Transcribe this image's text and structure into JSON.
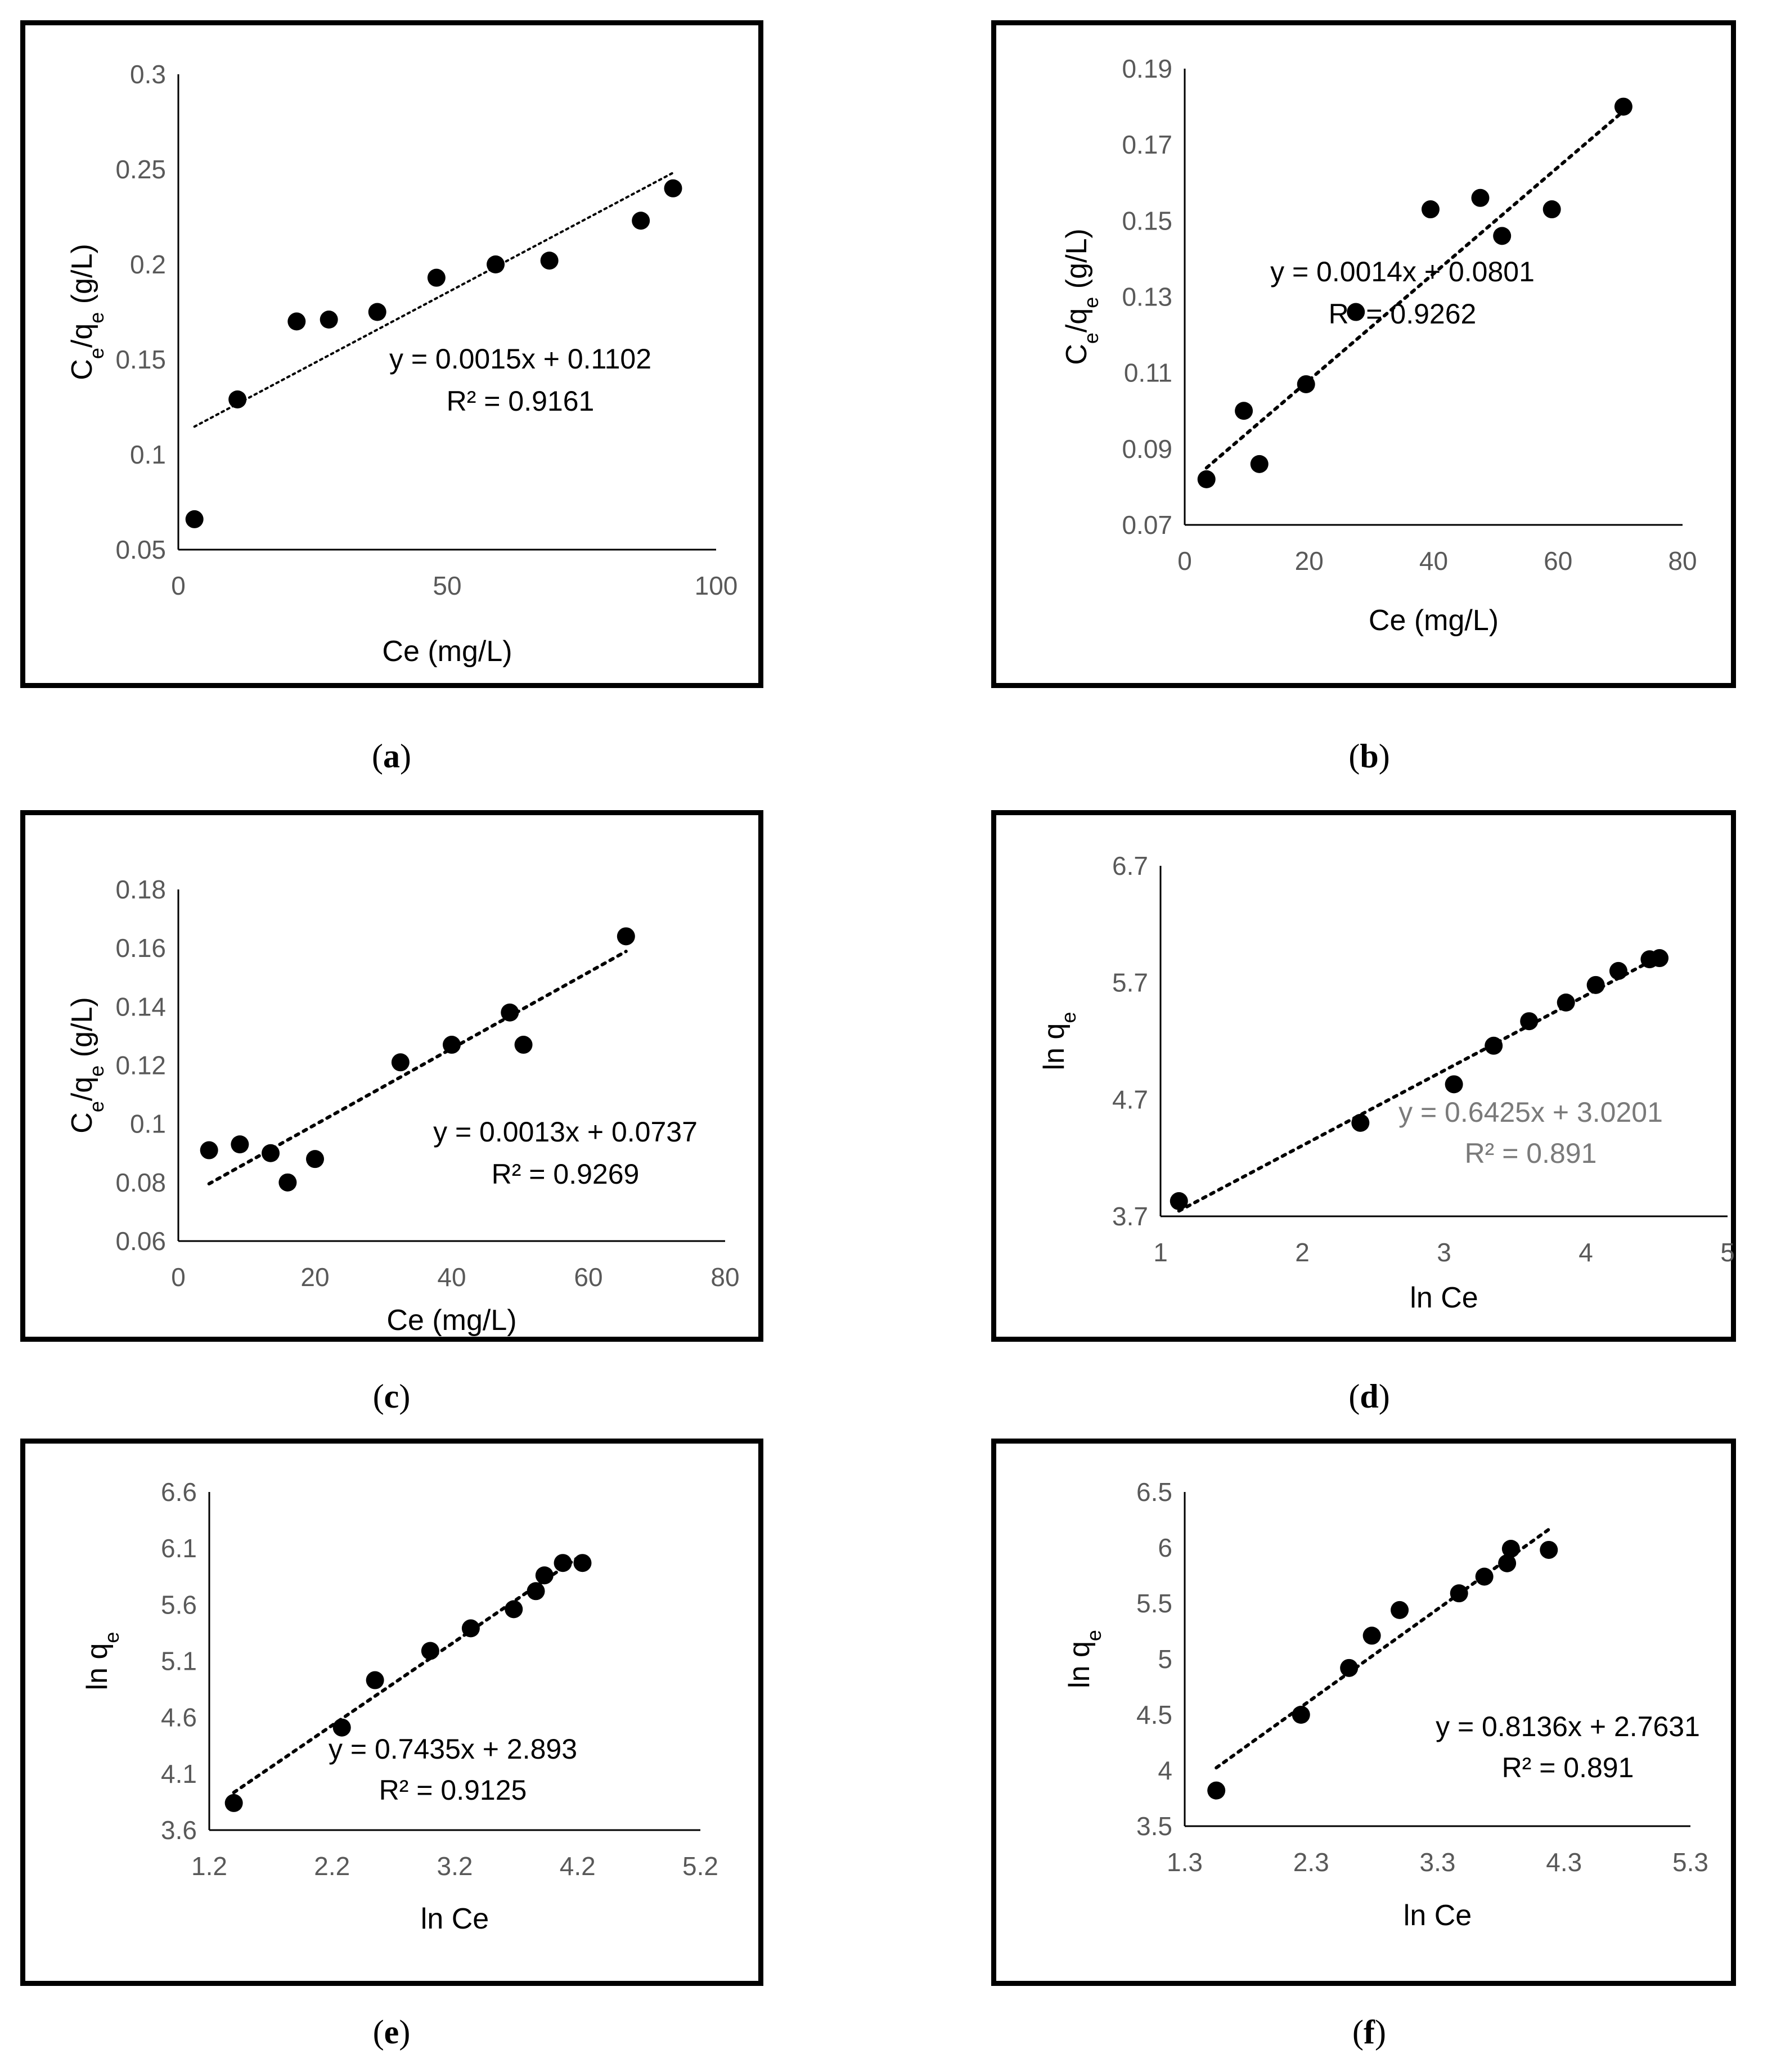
{
  "chart_data": [
    {
      "id": "a",
      "type": "scatter",
      "caption": "a",
      "xlabel": "Ce (mg/L)",
      "ylabel_main": "C",
      "ylabel_sub1": "e",
      "ylabel_mid": "/q",
      "ylabel_sub2": "e",
      "ylabel_unit": " (g/L)",
      "xlim": [
        0,
        100
      ],
      "ylim": [
        0.05,
        0.3
      ],
      "xticks": [
        0,
        50,
        100
      ],
      "xtick_labels": [
        "0",
        "50",
        "100"
      ],
      "yticks": [
        0.05,
        0.1,
        0.15,
        0.2,
        0.25,
        0.3
      ],
      "ytick_labels": [
        "0.05",
        "0.1",
        "0.15",
        "0.2",
        "0.25",
        "0.3"
      ],
      "points": [
        [
          3,
          0.066
        ],
        [
          11,
          0.129
        ],
        [
          22,
          0.17
        ],
        [
          28,
          0.171
        ],
        [
          37,
          0.175
        ],
        [
          48,
          0.193
        ],
        [
          59,
          0.2
        ],
        [
          69,
          0.202
        ],
        [
          86,
          0.223
        ],
        [
          92,
          0.24
        ]
      ],
      "trend": {
        "slope": 0.0015,
        "intercept": 0.1102,
        "x_range": [
          3,
          92
        ]
      },
      "equation": "y = 0.0015x + 0.1102",
      "r2": "R² = 0.9161"
    },
    {
      "id": "b",
      "type": "scatter",
      "caption": "b",
      "xlabel": "Ce (mg/L)",
      "ylabel_main": "C",
      "ylabel_sub1": "e",
      "ylabel_mid": "/q",
      "ylabel_sub2": "e",
      "ylabel_unit": " (g/L)",
      "xlim": [
        0,
        80
      ],
      "ylim": [
        0.07,
        0.19
      ],
      "xticks": [
        0,
        20,
        40,
        60,
        80
      ],
      "xtick_labels": [
        "0",
        "20",
        "40",
        "60",
        "80"
      ],
      "yticks": [
        0.07,
        0.09,
        0.11,
        0.13,
        0.15,
        0.17,
        0.19
      ],
      "ytick_labels": [
        "0.07",
        "0.09",
        "0.11",
        "0.13",
        "0.15",
        "0.17",
        "0.19"
      ],
      "points": [
        [
          3.5,
          0.082
        ],
        [
          9.5,
          0.1
        ],
        [
          12,
          0.086
        ],
        [
          19.5,
          0.107
        ],
        [
          27.5,
          0.126
        ],
        [
          39.5,
          0.153
        ],
        [
          47.5,
          0.156
        ],
        [
          51,
          0.146
        ],
        [
          59,
          0.153
        ],
        [
          70.5,
          0.18
        ]
      ],
      "trend": {
        "slope": 0.0014,
        "intercept": 0.0801,
        "x_range": [
          3.5,
          70.5
        ]
      },
      "equation": "y = 0.0014x + 0.0801",
      "r2": "R² = 0.9262"
    },
    {
      "id": "c",
      "type": "scatter",
      "caption": "c",
      "xlabel": "Ce (mg/L)",
      "ylabel_main": "C",
      "ylabel_sub1": "e",
      "ylabel_mid": "/q",
      "ylabel_sub2": "e",
      "ylabel_unit": " (g/L)",
      "xlim": [
        0,
        80
      ],
      "ylim": [
        0.06,
        0.18
      ],
      "xticks": [
        0,
        20,
        40,
        60,
        80
      ],
      "xtick_labels": [
        "0",
        "20",
        "40",
        "60",
        "80"
      ],
      "yticks": [
        0.06,
        0.08,
        0.1,
        0.12,
        0.14,
        0.16,
        0.18
      ],
      "ytick_labels": [
        "0.06",
        "0.08",
        "0.1",
        "0.12",
        "0.14",
        "0.16",
        "0.18"
      ],
      "points": [
        [
          4.5,
          0.091
        ],
        [
          9,
          0.093
        ],
        [
          13.5,
          0.09
        ],
        [
          16,
          0.08
        ],
        [
          20,
          0.088
        ],
        [
          32.5,
          0.121
        ],
        [
          40,
          0.127
        ],
        [
          48.5,
          0.138
        ],
        [
          50.5,
          0.127
        ],
        [
          65.5,
          0.164
        ]
      ],
      "trend": {
        "slope": 0.0013,
        "intercept": 0.0737,
        "x_range": [
          4.5,
          65.5
        ]
      },
      "equation": "y = 0.0013x + 0.0737",
      "r2": "R² = 0.9269"
    },
    {
      "id": "d",
      "type": "scatter",
      "caption": "d",
      "xlabel": "ln Ce",
      "ylabel_main": "ln q",
      "ylabel_sub1": "e",
      "ylabel_mid": "",
      "ylabel_sub2": "",
      "ylabel_unit": "",
      "xlim": [
        1,
        5
      ],
      "ylim": [
        3.7,
        6.7
      ],
      "xticks": [
        1,
        2,
        3,
        4,
        5
      ],
      "xtick_labels": [
        "1",
        "2",
        "3",
        "4",
        "5"
      ],
      "yticks": [
        3.7,
        4.7,
        5.7,
        6.7
      ],
      "ytick_labels": [
        "3.7",
        "4.7",
        "5.7",
        "6.7"
      ],
      "points": [
        [
          1.13,
          3.83
        ],
        [
          2.41,
          4.5
        ],
        [
          3.07,
          4.83
        ],
        [
          3.35,
          5.16
        ],
        [
          3.6,
          5.37
        ],
        [
          3.86,
          5.53
        ],
        [
          4.07,
          5.68
        ],
        [
          4.23,
          5.8
        ],
        [
          4.45,
          5.9
        ],
        [
          4.52,
          5.91
        ]
      ],
      "trend": {
        "slope": 0.6425,
        "intercept": 3.0201,
        "x_range": [
          1.13,
          4.52
        ]
      },
      "equation": "y = 0.6425x + 3.0201",
      "r2": "R² = 0.891",
      "grey_equation": true
    },
    {
      "id": "e",
      "type": "scatter",
      "caption": "e",
      "xlabel": "ln Ce",
      "ylabel_main": "ln q",
      "ylabel_sub1": "e",
      "ylabel_mid": "",
      "ylabel_sub2": "",
      "ylabel_unit": "",
      "xlim": [
        1.2,
        5.2
      ],
      "ylim": [
        3.6,
        6.6
      ],
      "xticks": [
        1.2,
        2.2,
        3.2,
        4.2,
        5.2
      ],
      "xtick_labels": [
        "1.2",
        "2.2",
        "3.2",
        "4.2",
        "5.2"
      ],
      "yticks": [
        3.6,
        4.1,
        4.6,
        5.1,
        5.6,
        6.1,
        6.6
      ],
      "ytick_labels": [
        "3.6",
        "4.1",
        "4.6",
        "5.1",
        "5.6",
        "6.1",
        "6.6"
      ],
      "points": [
        [
          1.4,
          3.84
        ],
        [
          2.28,
          4.51
        ],
        [
          2.55,
          4.93
        ],
        [
          3.0,
          5.19
        ],
        [
          3.33,
          5.39
        ],
        [
          3.68,
          5.56
        ],
        [
          3.86,
          5.72
        ],
        [
          3.93,
          5.86
        ],
        [
          4.08,
          5.97
        ],
        [
          4.24,
          5.97
        ]
      ],
      "trend": {
        "slope": 0.7435,
        "intercept": 2.893,
        "x_range": [
          1.4,
          4.24
        ]
      },
      "equation": "y = 0.7435x + 2.893",
      "r2": "R² = 0.9125"
    },
    {
      "id": "f",
      "type": "scatter",
      "caption": "f",
      "xlabel": "ln Ce",
      "ylabel_main": "ln q",
      "ylabel_sub1": "e",
      "ylabel_mid": "",
      "ylabel_sub2": "",
      "ylabel_unit": "",
      "xlim": [
        1.3,
        5.3
      ],
      "ylim": [
        3.5,
        6.5
      ],
      "xticks": [
        1.3,
        2.3,
        3.3,
        4.3,
        5.3
      ],
      "xtick_labels": [
        "1.3",
        "2.3",
        "3.3",
        "4.3",
        "5.3"
      ],
      "yticks": [
        3.5,
        4,
        4.5,
        5,
        5.5,
        6,
        6.5
      ],
      "ytick_labels": [
        "3.5",
        "4",
        "4.5",
        "5",
        "5.5",
        "6",
        "6.5"
      ],
      "points": [
        [
          1.55,
          3.82
        ],
        [
          2.22,
          4.5
        ],
        [
          2.6,
          4.92
        ],
        [
          2.78,
          5.21
        ],
        [
          3.0,
          5.44
        ],
        [
          3.47,
          5.59
        ],
        [
          3.67,
          5.74
        ],
        [
          3.85,
          5.86
        ],
        [
          3.88,
          5.99
        ],
        [
          4.18,
          5.98
        ]
      ],
      "trend": {
        "slope": 0.8136,
        "intercept": 2.7631,
        "x_range": [
          1.55,
          4.18
        ]
      },
      "equation": "y = 0.8136x + 2.7631",
      "r2": "R² = 0.891"
    }
  ]
}
